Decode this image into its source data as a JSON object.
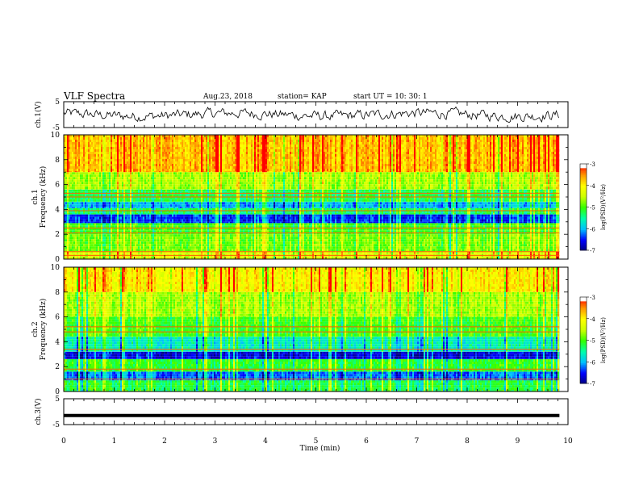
{
  "header": {
    "title": "VLF Spectra",
    "date": "Aug.23, 2018",
    "station": "station= KAP",
    "start": "start  UT =  10: 30: 1"
  },
  "colors": {
    "scale": [
      "#00007f",
      "#0000ff",
      "#00bfff",
      "#00ffaa",
      "#33ff00",
      "#ccff00",
      "#ffff00",
      "#ff9900",
      "#ff0000",
      "#ffffff"
    ]
  },
  "chart_data": [
    {
      "type": "line",
      "ylabel": "ch.1(V)",
      "yticks": [
        "5",
        "-5"
      ],
      "ylim": [
        -5,
        5
      ],
      "xlim": [
        0,
        10
      ],
      "data_x_end": 9.83,
      "description_values": "noisy waveform centered near 0 V with amplitude about 2.5 V"
    },
    {
      "type": "heatmap",
      "ylabel": "ch.1\nFrequency (kHz)",
      "yticks": [
        "0",
        "2",
        "4",
        "6",
        "8",
        "10"
      ],
      "ylim": [
        0,
        10
      ],
      "xlim": [
        0,
        10
      ],
      "data_x_end": 9.83,
      "colorbar": {
        "label": "log(PSD)(V²/Hz)",
        "ticks": [
          "-3",
          "-4",
          "-5",
          "-6",
          "-7"
        ],
        "range": [
          -7,
          -3
        ]
      },
      "bands_khz": [
        {
          "from": 0.0,
          "to": 0.6,
          "level": -4.3
        },
        {
          "from": 0.6,
          "to": 2.0,
          "level": -4.8
        },
        {
          "from": 2.0,
          "to": 2.9,
          "level": -5.0
        },
        {
          "from": 2.9,
          "to": 3.6,
          "level": -6.4
        },
        {
          "from": 3.6,
          "to": 4.1,
          "level": -5.3
        },
        {
          "from": 4.1,
          "to": 4.6,
          "level": -6.0
        },
        {
          "from": 4.6,
          "to": 5.6,
          "level": -5.2
        },
        {
          "from": 5.6,
          "to": 7.0,
          "level": -4.6
        },
        {
          "from": 7.0,
          "to": 10.0,
          "level": -3.7
        }
      ],
      "tones_khz": [
        0.3,
        0.6,
        2.1,
        2.5,
        3.9,
        5.0,
        5.3
      ]
    },
    {
      "type": "heatmap",
      "ylabel": "ch.2\nFrequency (kHz)",
      "yticks": [
        "0",
        "2",
        "4",
        "6",
        "8",
        "10"
      ],
      "ylim": [
        0,
        10
      ],
      "xlim": [
        0,
        10
      ],
      "data_x_end": 9.83,
      "colorbar": {
        "label": "log(PSD)(V²/Hz)",
        "ticks": [
          "-3",
          "-4",
          "-5",
          "-6",
          "-7"
        ],
        "range": [
          -7,
          -3
        ]
      },
      "bands_khz": [
        {
          "from": 0.0,
          "to": 0.9,
          "level": -5.2
        },
        {
          "from": 0.9,
          "to": 1.6,
          "level": -6.2
        },
        {
          "from": 1.6,
          "to": 2.6,
          "level": -5.1
        },
        {
          "from": 2.6,
          "to": 3.2,
          "level": -6.6
        },
        {
          "from": 3.2,
          "to": 4.4,
          "level": -5.6
        },
        {
          "from": 4.4,
          "to": 6.0,
          "level": -5.0
        },
        {
          "from": 6.0,
          "to": 8.0,
          "level": -4.6
        },
        {
          "from": 8.0,
          "to": 10.0,
          "level": -4.0
        }
      ],
      "tones_khz": [
        1.0,
        1.8,
        3.4,
        4.8,
        5.2
      ]
    },
    {
      "type": "line",
      "ylabel": "ch.3(V)",
      "yticks": [
        "5",
        "-5"
      ],
      "ylim": [
        -5,
        5
      ],
      "xlim": [
        0,
        10
      ],
      "data_x_end": 9.83,
      "values_constant": -1.5
    }
  ],
  "xaxis": {
    "label": "Time (min)",
    "ticks": [
      "0",
      "1",
      "2",
      "3",
      "4",
      "5",
      "6",
      "7",
      "8",
      "9",
      "10"
    ]
  }
}
